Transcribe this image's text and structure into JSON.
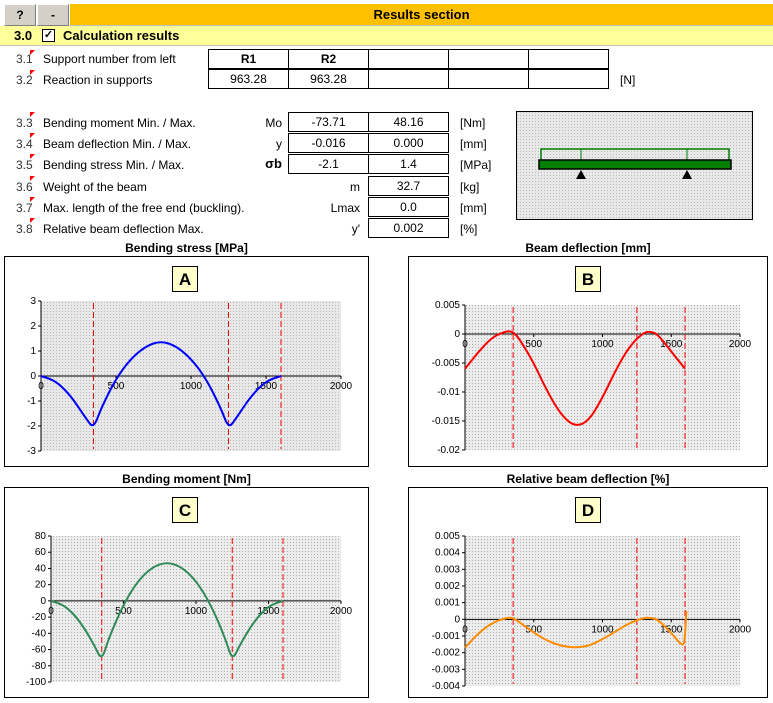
{
  "toolbar": {
    "help_label": "?",
    "minus_label": "-",
    "title": "Results section"
  },
  "section": {
    "number": "3.0",
    "checked": "✓",
    "title": "Calculation results"
  },
  "rows": {
    "r31": {
      "num": "3.1",
      "label": "Support number from left",
      "c1": "R1",
      "c2": "R2"
    },
    "r32": {
      "num": "3.2",
      "label": "Reaction in supports",
      "c1": "963.28",
      "c2": "963.28",
      "unit": "[N]"
    },
    "r33": {
      "num": "3.3",
      "label": "Bending moment Min. / Max.",
      "sym": "Mo",
      "min": "-73.71",
      "max": "48.16",
      "unit": "[Nm]"
    },
    "r34": {
      "num": "3.4",
      "label": "Beam deflection Min. / Max.",
      "sym": "y",
      "min": "-0.016",
      "max": "0.000",
      "unit": "[mm]"
    },
    "r35": {
      "num": "3.5",
      "label": "Bending stress Min. / Max.",
      "sym": "σb",
      "min": "-2.1",
      "max": "1.4",
      "unit": "[MPa]"
    },
    "r36": {
      "num": "3.6",
      "label": "Weight of the beam",
      "sym": "m",
      "val": "32.7",
      "unit": "[kg]"
    },
    "r37": {
      "num": "3.7",
      "label": "Max. length of the free end (buckling).",
      "sym": "Lmax",
      "val": "0.0",
      "unit": "[mm]"
    },
    "r38": {
      "num": "3.8",
      "label": "Relative beam deflection Max.",
      "sym": "y'",
      "val": "0.002",
      "unit": "[%]"
    }
  },
  "charts": {
    "A": {
      "title": "Bending stress  [MPa]",
      "letter": "A"
    },
    "B": {
      "title": "Beam deflection  [mm]",
      "letter": "B"
    },
    "C": {
      "title": "Bending moment  [Nm]",
      "letter": "C"
    },
    "D": {
      "title": "Relative beam deflection  [%]",
      "letter": "D"
    }
  },
  "colors": {
    "stress": "#0000ff",
    "deflection": "#ff0000",
    "moment": "#2e8b57",
    "relative": "#ff8c00",
    "guides": "#ff0000"
  },
  "chart_data": [
    {
      "type": "line",
      "title": "Bending stress  [MPa]",
      "x": [
        0,
        100,
        200,
        300,
        350,
        400,
        500,
        600,
        700,
        800,
        900,
        1000,
        1100,
        1200,
        1250,
        1300,
        1400,
        1500,
        1600
      ],
      "series": [
        {
          "values": [
            0,
            -0.2,
            -0.8,
            -1.7,
            -2.1,
            -1.3,
            -0.1,
            0.7,
            1.2,
            1.4,
            1.2,
            0.7,
            -0.1,
            -1.3,
            -2.1,
            -1.7,
            -0.8,
            -0.2,
            0
          ]
        }
      ],
      "xlim": [
        0,
        2000
      ],
      "ylim": [
        -3,
        3
      ],
      "xticks": [
        0,
        500,
        1000,
        1500,
        2000
      ],
      "yticks": [
        3,
        2,
        1,
        0,
        -1,
        -2,
        -3
      ],
      "guides": [
        350,
        1250,
        1600
      ]
    },
    {
      "type": "line",
      "title": "Beam deflection  [mm]",
      "x": [
        0,
        100,
        200,
        300,
        350,
        400,
        500,
        600,
        700,
        800,
        900,
        1000,
        1100,
        1200,
        1300,
        1350,
        1400,
        1500,
        1600
      ],
      "series": [
        {
          "values": [
            -0.006,
            -0.003,
            -0.0005,
            0.0005,
            0.0004,
            -0.001,
            -0.005,
            -0.01,
            -0.014,
            -0.016,
            -0.015,
            -0.011,
            -0.006,
            -0.002,
            0.0003,
            0.0004,
            0,
            -0.003,
            -0.006
          ]
        }
      ],
      "xlim": [
        0,
        2000
      ],
      "ylim": [
        -0.02,
        0.005
      ],
      "xticks": [
        0,
        500,
        1000,
        1500,
        2000
      ],
      "yticks": [
        0.005,
        0,
        -0.005,
        -0.01,
        -0.015,
        -0.02
      ],
      "guides": [
        350,
        1250,
        1600
      ]
    },
    {
      "type": "line",
      "title": "Bending moment  [Nm]",
      "x": [
        0,
        100,
        200,
        300,
        350,
        400,
        500,
        600,
        700,
        800,
        900,
        1000,
        1100,
        1200,
        1250,
        1300,
        1400,
        1500,
        1600
      ],
      "series": [
        {
          "values": [
            0,
            -6,
            -25,
            -55,
            -74,
            -45,
            -4,
            25,
            42,
            48,
            42,
            25,
            -4,
            -45,
            -74,
            -55,
            -25,
            -6,
            0
          ]
        }
      ],
      "xlim": [
        0,
        2000
      ],
      "ylim": [
        -100,
        80
      ],
      "xticks": [
        0,
        500,
        1000,
        1500,
        2000
      ],
      "yticks": [
        80,
        60,
        40,
        20,
        0,
        -20,
        -40,
        -60,
        -80,
        -100
      ],
      "guides": [
        350,
        1250,
        1600
      ]
    },
    {
      "type": "line",
      "title": "Relative beam deflection  [%]",
      "x": [
        0,
        100,
        200,
        300,
        350,
        400,
        500,
        600,
        700,
        800,
        900,
        1000,
        1100,
        1200,
        1300,
        1350,
        1400,
        1500,
        1590,
        1600,
        1610
      ],
      "series": [
        {
          "values": [
            -0.0017,
            -0.0008,
            -0.0002,
            0.0001,
            0.0001,
            -0.0002,
            -0.0008,
            -0.0013,
            -0.0016,
            -0.0017,
            -0.0016,
            -0.0012,
            -0.0007,
            -0.0002,
            0.0001,
            0.0001,
            0,
            -0.0008,
            -0.0017,
            -0.001,
            0.0005
          ]
        }
      ],
      "xlim": [
        0,
        2000
      ],
      "ylim": [
        -0.004,
        0.005
      ],
      "xticks": [
        0,
        500,
        1000,
        1500,
        2000
      ],
      "yticks": [
        0.005,
        0.004,
        0.003,
        0.002,
        0.001,
        0,
        -0.001,
        -0.002,
        -0.003,
        -0.004
      ],
      "guides": [
        350,
        1250,
        1600
      ]
    }
  ]
}
